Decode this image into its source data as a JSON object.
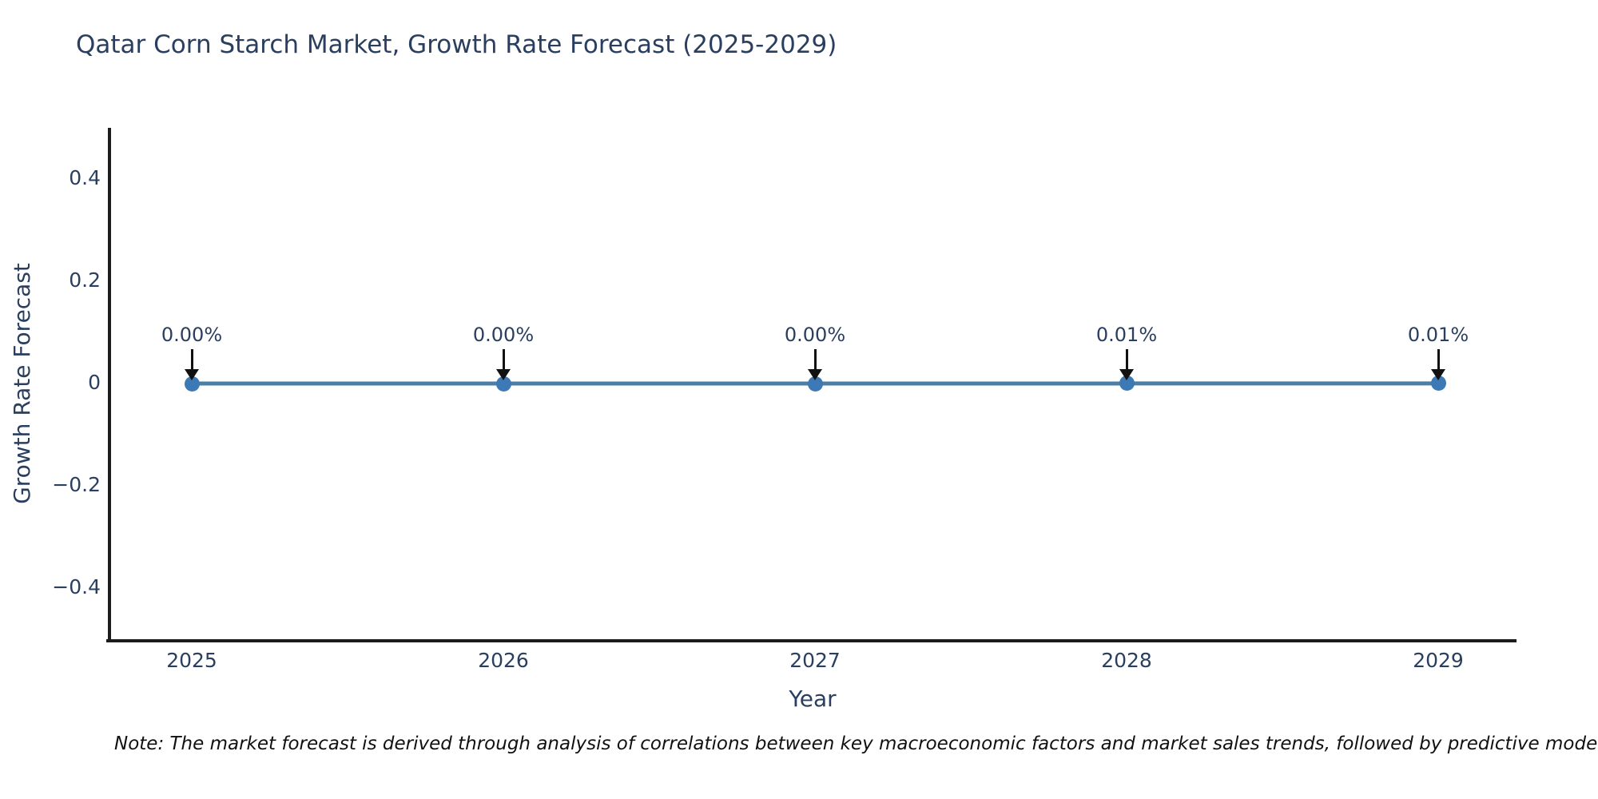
{
  "title": "Qatar Corn Starch Market, Growth Rate Forecast (2025-2029)",
  "note": "Note: The market forecast is derived through analysis of correlations between key macroeconomic factors and market sales trends, followed by predictive modeling to project future sales.",
  "colors": {
    "title_text": "#2a3f5f",
    "axis_text": "#2a3f5f",
    "axis_line": "#1c1c1c",
    "series_line": "#4d7ea6",
    "marker_fill": "#3c79b5",
    "annotation_text": "#2a3f5f",
    "arrow": "#111111",
    "note_text": "#111111",
    "background": "#ffffff"
  },
  "chart_data": {
    "type": "line",
    "title": "Qatar Corn Starch Market, Growth Rate Forecast (2025-2029)",
    "xlabel": "Year",
    "ylabel": "Growth Rate Forecast",
    "x": [
      "2025",
      "2026",
      "2027",
      "2028",
      "2029"
    ],
    "series": [
      {
        "name": "Growth Rate Forecast",
        "values": [
          0.0,
          0.0,
          0.0,
          0.0001,
          0.0001
        ],
        "point_labels": [
          "0.00%",
          "0.00%",
          "0.00%",
          "0.01%",
          "0.01%"
        ]
      }
    ],
    "yticks": [
      0.4,
      0.2,
      0,
      -0.2,
      -0.4
    ],
    "ylim": [
      -0.5,
      0.5
    ],
    "grid": false,
    "legend": false
  }
}
